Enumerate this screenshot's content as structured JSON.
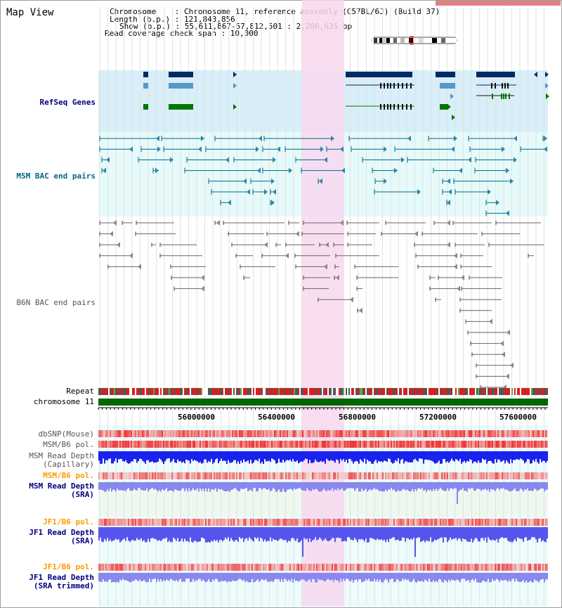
{
  "title": "Map View",
  "info": {
    "chromosome": "Chromosome    : Chromosome 11, reference assembly (C57BL/6J) (Build 37)",
    "length": "Length (b.p.) : 121,843,856",
    "show": "Show (b.p.) : 55,611,867-57,812,501 : 2,200,635 bp",
    "coverage": "Read coverage check span : 10,000"
  },
  "tracks": {
    "refseq": "RefSeq Genes",
    "msm_bac": "MSM BAC end pairs",
    "b6n_bac": "B6N BAC end pairs",
    "repeat": "Repeat",
    "chromosome": "chromosome 11",
    "dbsnp": "dbSNP(Mouse)",
    "msm_b6_pol": "MSM/B6 pol.",
    "msm_depth_cap_1": "MSM Read Depth",
    "msm_depth_cap_2": "(Capillary)",
    "msm_b6_pol2": "MSM/B6 pol.",
    "msm_depth_sra_1": "MSM Read Depth",
    "msm_depth_sra_2": "(SRA)",
    "jf1_pol": "JF1/B6 pol.",
    "jf1_depth_1": "JF1 Read Depth",
    "jf1_depth_2": "(SRA)",
    "jf1_pol2": "JF1/B6 pol.",
    "jf1_trim_1": "JF1 Read Depth",
    "jf1_trim_2": "(SRA trimmed)"
  },
  "axis": {
    "ticks": [
      "56000000",
      "56400000",
      "56800000",
      "57200000",
      "57600000"
    ]
  },
  "colors": {
    "refseq_bg": "#d8eef8",
    "bac_bg": "#e6fafa",
    "highlight": "#f8d8f0",
    "chromosome_green": "#006600",
    "gene_navy": "#002a66",
    "gene_steel": "#5599c8",
    "gene_green": "#007700",
    "msm_bac_line": "#006688",
    "b6n_bac_line": "#666666",
    "depth_blue": "#1a22ee",
    "depth_lightblue": "#8888ee",
    "pol_red": "#ee3333",
    "label_navy": "#000080",
    "label_orange": "#ff9900"
  }
}
